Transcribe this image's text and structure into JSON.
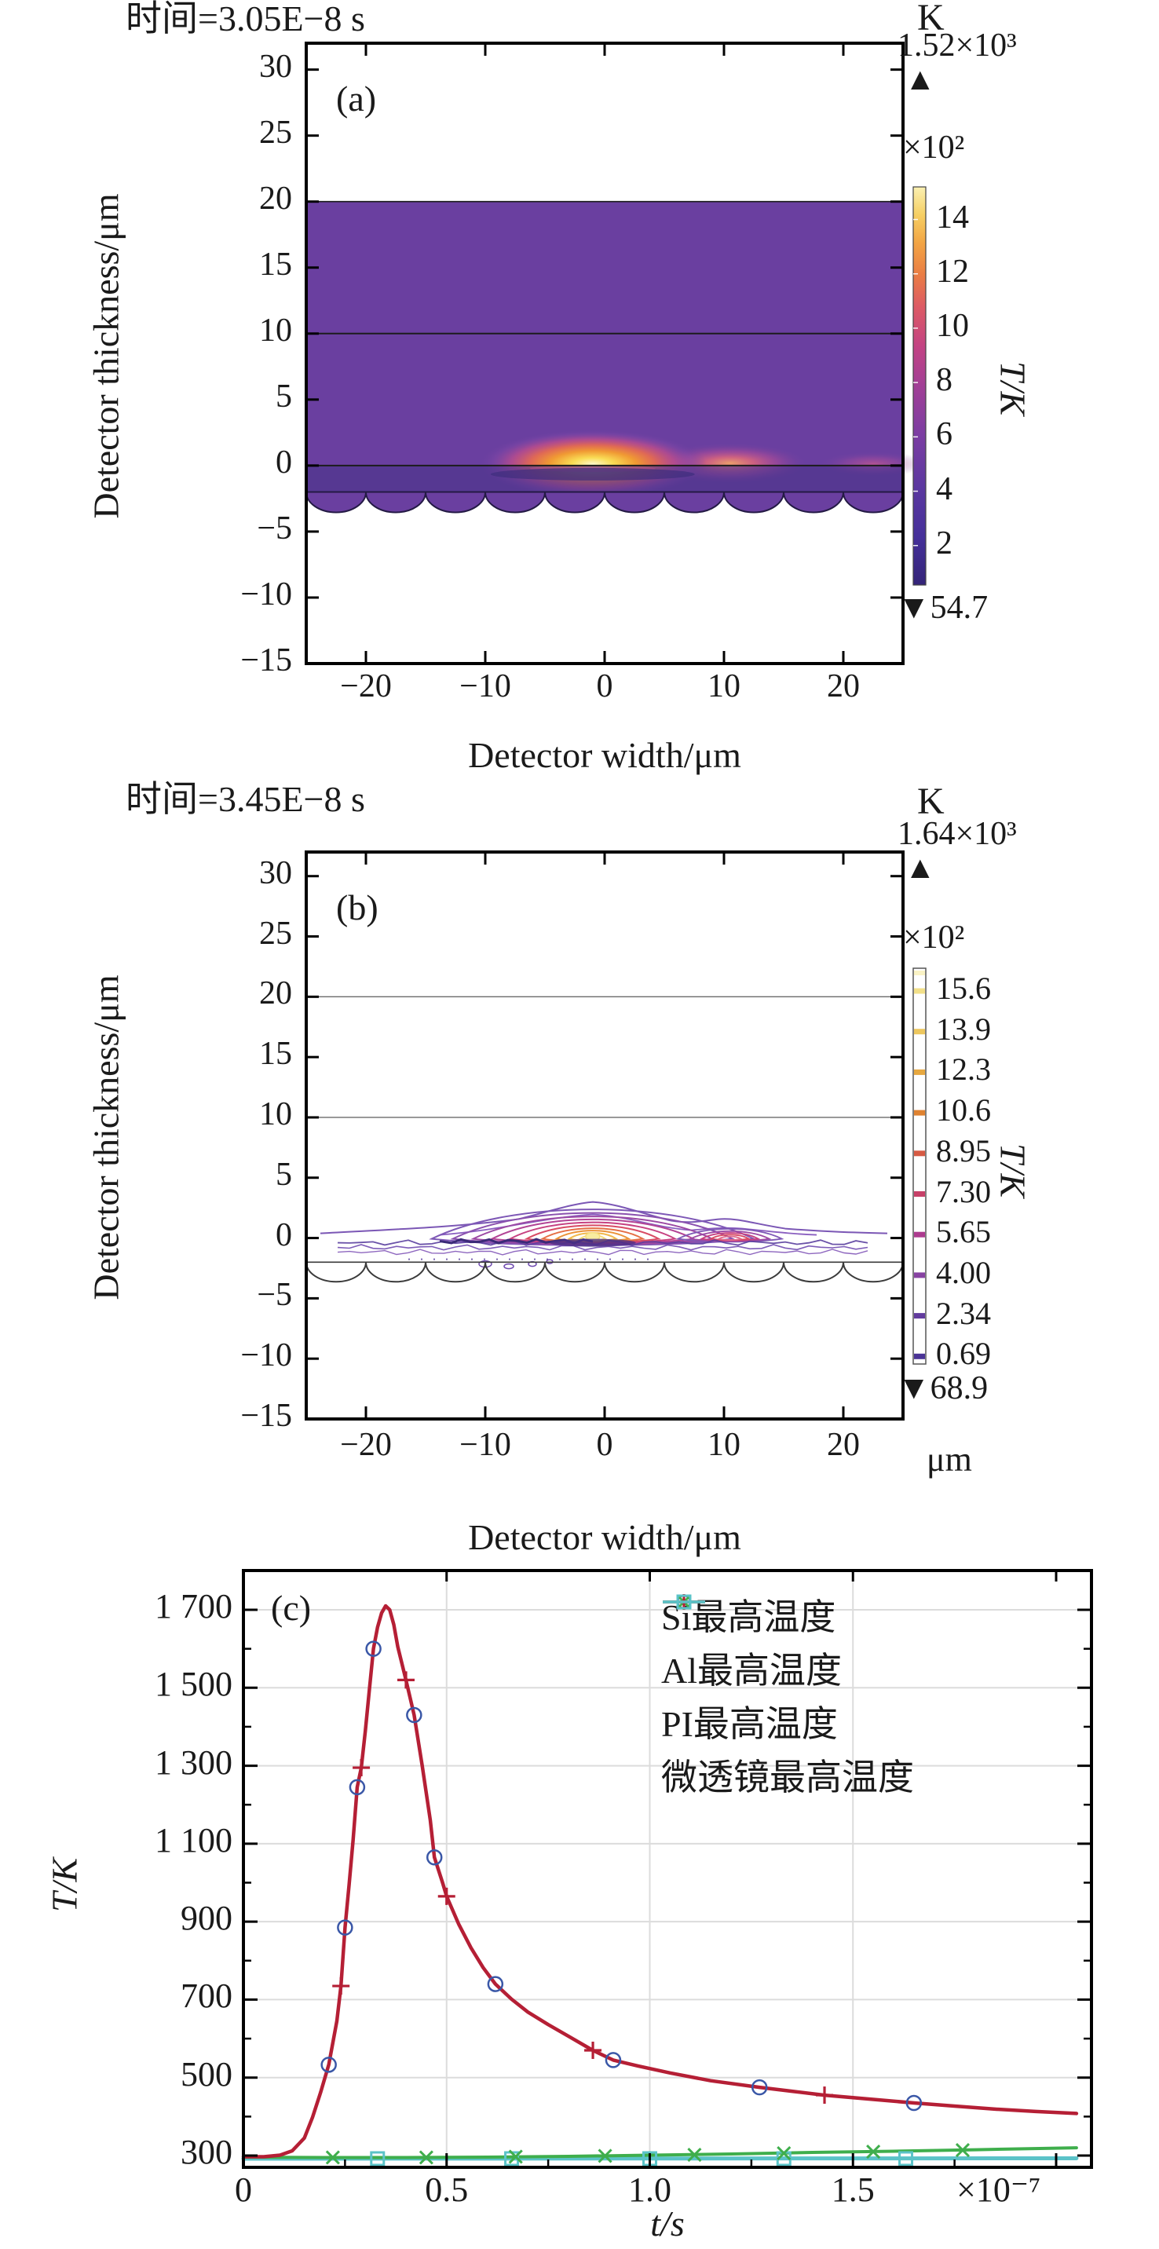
{
  "panel_a": {
    "title": "时间=3.05E−8 s",
    "label": "(a)",
    "xlabel": "Detector width/μm",
    "ylabel": "Detector thickness/μm",
    "xticks": [
      "−20",
      "−10",
      "0",
      "10",
      "20"
    ],
    "yticks": [
      "30",
      "25",
      "20",
      "15",
      "10",
      "5",
      "0",
      "−5",
      "−10",
      "−15"
    ],
    "colorbar": {
      "unit": "K",
      "max": "1.52×10³",
      "icon_up": "▲",
      "icon_down": "▼",
      "scale": "×10²",
      "ticks": [
        "14",
        "12",
        "10",
        "8",
        "6",
        "4",
        "2"
      ],
      "min": "54.7",
      "axis_label": "T/K"
    }
  },
  "panel_b": {
    "title": "时间=3.45E−8 s",
    "label": "(b)",
    "xlabel": "Detector width/μm",
    "x_unit": "μm",
    "ylabel": "Detector thickness/μm",
    "xticks": [
      "−20",
      "−10",
      "0",
      "10",
      "20"
    ],
    "yticks": [
      "30",
      "25",
      "20",
      "15",
      "10",
      "5",
      "0",
      "−5",
      "−10",
      "−15"
    ],
    "colorbar": {
      "unit": "K",
      "max": "1.64×10³",
      "icon_up": "▲",
      "icon_down": "▼",
      "scale": "×10²",
      "ticks": [
        "15.6",
        "13.9",
        "12.3",
        "10.6",
        "8.95",
        "7.30",
        "5.65",
        "4.00",
        "2.34",
        "0.69"
      ],
      "min": "68.9",
      "axis_label": "T/K"
    }
  },
  "panel_c": {
    "label": "(c)",
    "xlabel": "t/s",
    "x_scale": "×10⁻⁷",
    "ylabel": "T/K",
    "xticks": [
      "0",
      "0.5",
      "1.0",
      "1.5"
    ],
    "yticks": [
      "1 700",
      "1 500",
      "1 300",
      "1 100",
      "900",
      "700",
      "500",
      "300"
    ],
    "legend": [
      {
        "name": "Si最高温度",
        "color": "#3a57a7",
        "marker": "circle"
      },
      {
        "name": "Al最高温度",
        "color": "#3fae4c",
        "marker": "x"
      },
      {
        "name": "PI最高温度",
        "color": "#b51f35",
        "marker": "plus"
      },
      {
        "name": "微透镜最高温度",
        "color": "#5bc3c8",
        "marker": "square"
      }
    ]
  },
  "chart_data": [
    {
      "type": "heatmap",
      "panel": "a",
      "title": "时间=3.05E−8 s",
      "xlabel": "Detector width/μm",
      "ylabel": "Detector thickness/μm",
      "xlim": [
        -25,
        25
      ],
      "ylim": [
        -15,
        32
      ],
      "xtick_values": [
        -20,
        -10,
        0,
        10,
        20
      ],
      "ytick_values": [
        30,
        25,
        20,
        15,
        10,
        5,
        0,
        -5,
        -10,
        -15
      ],
      "temperature_range_K": [
        54.7,
        1520
      ],
      "colorbar_tick_values_x100K": [
        14,
        12,
        10,
        8,
        6,
        4,
        2
      ],
      "layers": {
        "slab_top_um": 20,
        "interface_um": 10,
        "surface_um": 0,
        "absorber_bottom_um": -2,
        "microlens_count": 10,
        "microlens_depth_um": 1.6
      },
      "hotspots": [
        {
          "x_um": -1,
          "y_um": 0,
          "strength": 1.0
        },
        {
          "x_um": 10.5,
          "y_um": 0,
          "strength": 0.55
        },
        {
          "x_um": 22.5,
          "y_um": 0,
          "strength": 0.3
        }
      ]
    },
    {
      "type": "heatmap",
      "panel": "b",
      "subtype": "contour",
      "title": "时间=3.45E−8 s",
      "xlabel": "Detector width/μm",
      "ylabel": "Detector thickness/μm",
      "xlim": [
        -25,
        25
      ],
      "ylim": [
        -15,
        32
      ],
      "xtick_values": [
        -20,
        -10,
        0,
        10,
        20
      ],
      "ytick_values": [
        30,
        25,
        20,
        15,
        10,
        5,
        0,
        -5,
        -10,
        -15
      ],
      "temperature_range_K": [
        68.9,
        1640
      ],
      "contour_levels_x100K": [
        15.6,
        13.9,
        12.3,
        10.6,
        8.95,
        7.3,
        5.65,
        4.0,
        2.34,
        0.69
      ],
      "layers": {
        "line1_um": 20,
        "line2_um": 10,
        "surface_um": 0,
        "absorber_bottom_um": -2,
        "microlens_count": 10
      },
      "hotspots": [
        {
          "x_um": -1,
          "y_um": 0,
          "strength": 1.0
        },
        {
          "x_um": 10.5,
          "y_um": 0,
          "strength": 0.5
        }
      ]
    },
    {
      "type": "line",
      "panel": "c",
      "xlabel": "t/s",
      "x_scale_factor": "×10⁻⁷",
      "ylabel": "T/K",
      "xlim": [
        0,
        2.08
      ],
      "ylim": [
        300,
        1700
      ],
      "xtick_values": [
        0,
        0.5,
        1.0,
        1.5
      ],
      "ytick_values": [
        300,
        500,
        700,
        900,
        1100,
        1300,
        1500,
        1700
      ],
      "grid": true,
      "legend_position": "top-right",
      "series": [
        {
          "name": "PI最高温度",
          "color": "#b51f35",
          "marker": "plus",
          "line": [
            [
              0,
              297
            ],
            [
              0.05,
              297
            ],
            [
              0.09,
              301
            ],
            [
              0.12,
              312
            ],
            [
              0.15,
              345
            ],
            [
              0.17,
              398
            ],
            [
              0.19,
              462
            ],
            [
              0.21,
              533
            ],
            [
              0.23,
              645
            ],
            [
              0.24,
              735
            ],
            [
              0.25,
              885
            ],
            [
              0.26,
              995
            ],
            [
              0.27,
              1110
            ],
            [
              0.28,
              1245
            ],
            [
              0.29,
              1295
            ],
            [
              0.3,
              1390
            ],
            [
              0.31,
              1495
            ],
            [
              0.32,
              1600
            ],
            [
              0.33,
              1655
            ],
            [
              0.34,
              1692
            ],
            [
              0.35,
              1710
            ],
            [
              0.36,
              1700
            ],
            [
              0.37,
              1662
            ],
            [
              0.38,
              1605
            ],
            [
              0.4,
              1520
            ],
            [
              0.42,
              1430
            ],
            [
              0.44,
              1300
            ],
            [
              0.46,
              1160
            ],
            [
              0.47,
              1065
            ],
            [
              0.49,
              1000
            ],
            [
              0.5,
              965
            ],
            [
              0.53,
              893
            ],
            [
              0.56,
              833
            ],
            [
              0.59,
              782
            ],
            [
              0.62,
              740
            ],
            [
              0.66,
              701
            ],
            [
              0.7,
              668
            ],
            [
              0.75,
              636
            ],
            [
              0.8,
              606
            ],
            [
              0.86,
              570
            ],
            [
              0.91,
              545
            ],
            [
              0.97,
              530
            ],
            [
              1.05,
              512
            ],
            [
              1.15,
              492
            ],
            [
              1.27,
              475
            ],
            [
              1.35,
              465
            ],
            [
              1.43,
              455
            ],
            [
              1.55,
              444
            ],
            [
              1.65,
              435
            ],
            [
              1.75,
              427
            ],
            [
              1.85,
              419
            ],
            [
              1.95,
              413
            ],
            [
              2.05,
              408
            ]
          ],
          "markers": [
            [
              0.24,
              735
            ],
            [
              0.29,
              1295
            ],
            [
              0.4,
              1520
            ],
            [
              0.5,
              965
            ],
            [
              0.86,
              570
            ],
            [
              1.43,
              455
            ]
          ]
        },
        {
          "name": "Si最高温度",
          "color": "#3a57a7",
          "marker": "circle",
          "line_overlaps": "PI最高温度",
          "markers": [
            [
              0.21,
              533
            ],
            [
              0.25,
              885
            ],
            [
              0.28,
              1245
            ],
            [
              0.32,
              1600
            ],
            [
              0.42,
              1430
            ],
            [
              0.47,
              1065
            ],
            [
              0.62,
              740
            ],
            [
              0.91,
              545
            ],
            [
              1.27,
              475
            ],
            [
              1.65,
              435
            ]
          ]
        },
        {
          "name": "Al最高温度",
          "color": "#3fae4c",
          "marker": "x",
          "line": [
            [
              0,
              296
            ],
            [
              0.2,
              295
            ],
            [
              0.4,
              295
            ],
            [
              0.6,
              296
            ],
            [
              0.8,
              298
            ],
            [
              1.0,
              301
            ],
            [
              1.2,
              304
            ],
            [
              1.4,
              308
            ],
            [
              1.6,
              311
            ],
            [
              1.8,
              315
            ],
            [
              2.05,
              320
            ]
          ],
          "markers": [
            [
              0.22,
              295
            ],
            [
              0.45,
              295
            ],
            [
              0.67,
              297
            ],
            [
              0.89,
              299
            ],
            [
              1.11,
              302
            ],
            [
              1.33,
              306
            ],
            [
              1.55,
              310
            ],
            [
              1.77,
              314
            ]
          ]
        },
        {
          "name": "微透镜最高温度",
          "color": "#5bc3c8",
          "marker": "square",
          "line": [
            [
              0,
              292
            ],
            [
              2.05,
              293
            ]
          ],
          "markers": [
            [
              0.33,
              292
            ],
            [
              0.66,
              292
            ],
            [
              1.0,
              292
            ],
            [
              1.33,
              292
            ],
            [
              1.63,
              292
            ]
          ]
        }
      ]
    }
  ]
}
